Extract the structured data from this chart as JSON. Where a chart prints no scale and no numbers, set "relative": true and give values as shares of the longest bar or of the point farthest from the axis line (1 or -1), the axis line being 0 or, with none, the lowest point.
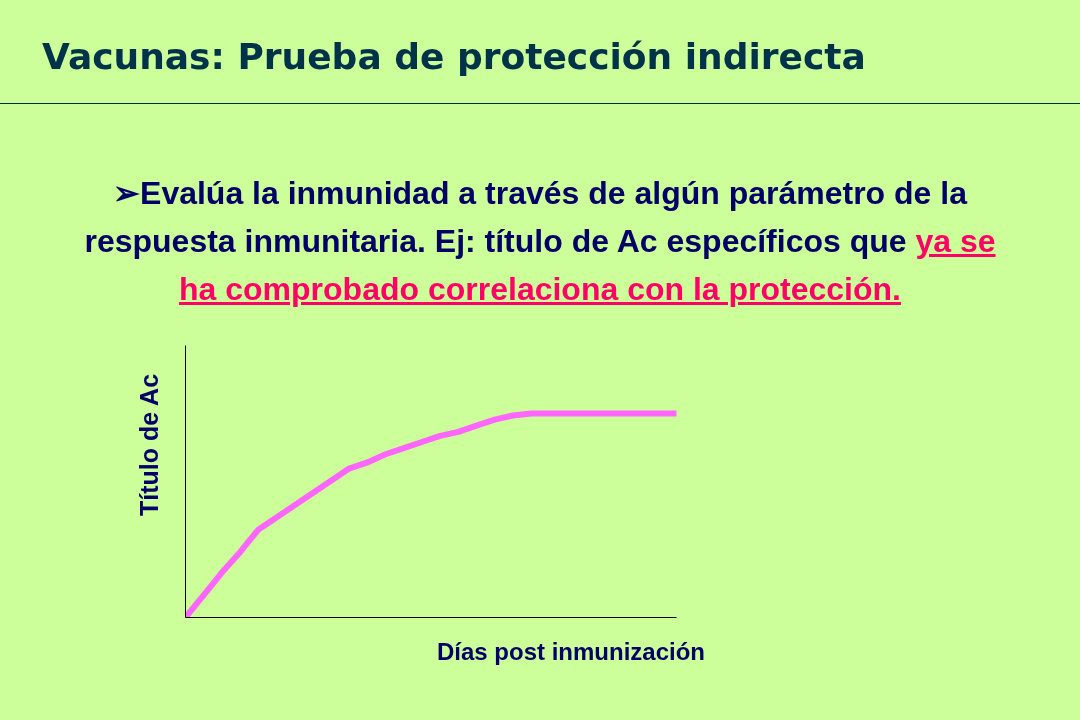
{
  "chart_data": {
    "type": "line",
    "title": "Vacunas: Prueba de protección indirecta",
    "subtitle": "➢Evalúa la inmunidad a través de algún parámetro de la respuesta inmunitaria. Ej: título de Ac específicos que",
    "annotations": [
      "ya se",
      "ha comprobado correlaciona con la protección."
    ],
    "xlabel": "Días post inmunización",
    "ylabel": "Título de Ac",
    "relative": true,
    "line_style": "solid",
    "categories": [
      null,
      null,
      null,
      null,
      null,
      null,
      null,
      null,
      null,
      null,
      null,
      null,
      null,
      null,
      null,
      null,
      null,
      null,
      null,
      null,
      null,
      null,
      null,
      null,
      null,
      null,
      null,
      null
    ],
    "series": [
      {
        "color": "#ff66ff",
        "values": [
          0,
          0.11,
          0.22,
          0.32,
          0.43,
          0.49,
          0.55,
          0.61,
          0.67,
          0.73,
          0.76,
          0.8,
          0.83,
          0.86,
          0.89,
          0.91,
          0.94,
          0.97,
          0.99,
          1,
          1,
          1,
          1,
          1,
          1,
          1,
          1,
          1
        ]
      }
    ]
  }
}
